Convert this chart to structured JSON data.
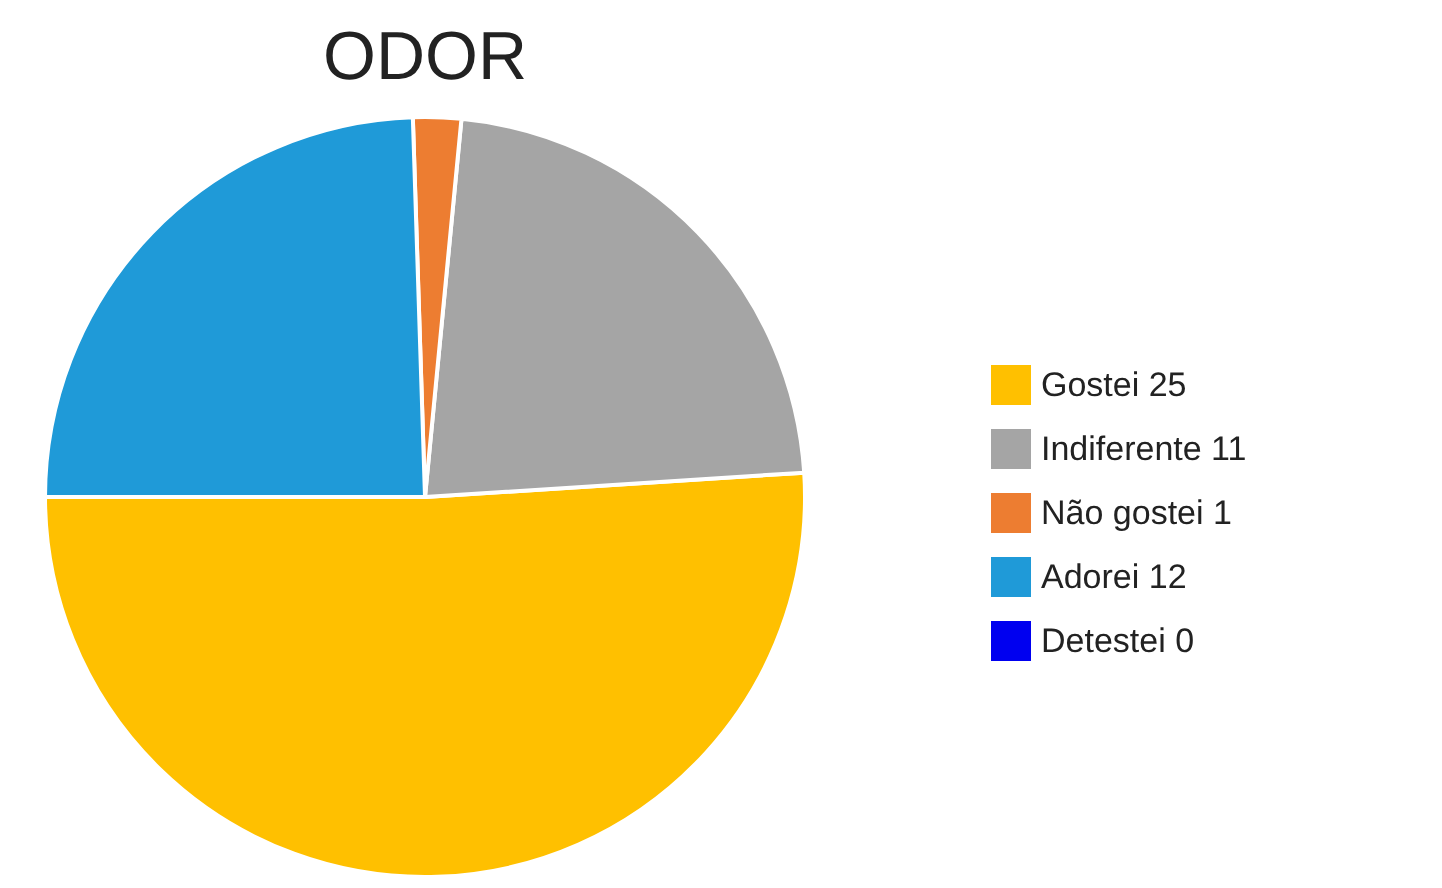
{
  "chart_data": {
    "type": "pie",
    "title": "ODOR",
    "categories": [
      "Gostei 25",
      "Indiferente 11",
      "Não gostei 1",
      "Adorei 12",
      "Detestei 0"
    ],
    "values": [
      25,
      11,
      1,
      12,
      0
    ],
    "colors": [
      "#ffc000",
      "#a5a5a5",
      "#ed7d31",
      "#1f9ad8",
      "#0000f0"
    ],
    "legend": "right"
  }
}
